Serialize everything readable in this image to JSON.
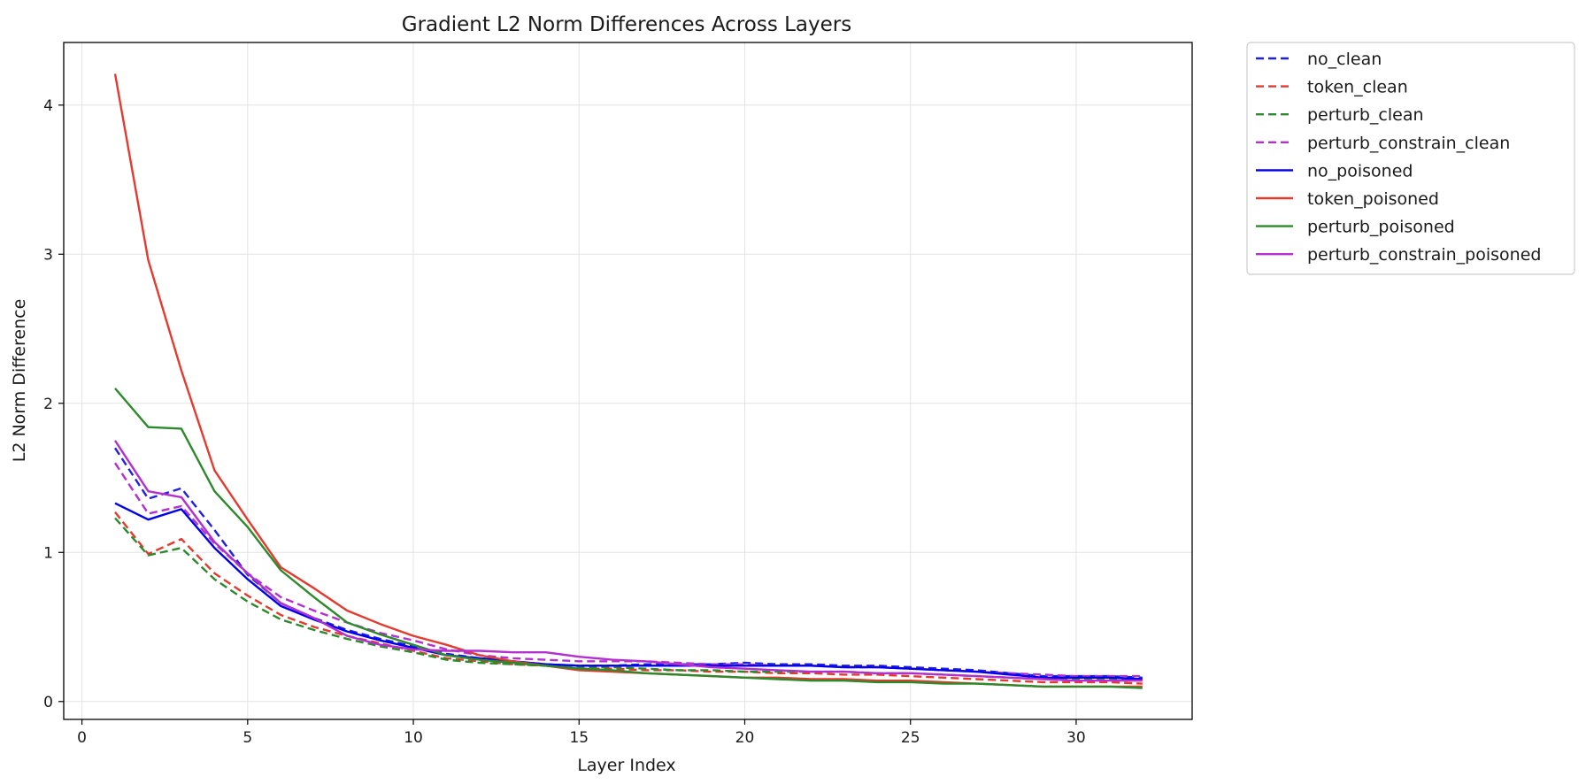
{
  "chart_data": {
    "type": "line",
    "title": "Gradient L2 Norm Differences Across Layers",
    "xlabel": "Layer Index",
    "ylabel": "L2 Norm Difference",
    "xlim": [
      -0.55,
      33.5
    ],
    "ylim": [
      -0.12,
      4.42
    ],
    "xticks": [
      0,
      5,
      10,
      15,
      20,
      25,
      30
    ],
    "yticks": [
      0,
      1,
      2,
      3,
      4
    ],
    "grid": true,
    "legend_position": "outside-top-right",
    "x": [
      1,
      2,
      3,
      4,
      5,
      6,
      7,
      8,
      9,
      10,
      11,
      12,
      13,
      14,
      15,
      16,
      17,
      18,
      19,
      20,
      21,
      22,
      23,
      24,
      25,
      26,
      27,
      28,
      29,
      30,
      31,
      32
    ],
    "series": [
      {
        "name": "no_clean",
        "color": "#1f1fe6",
        "dash": true,
        "values": [
          1.7,
          1.36,
          1.43,
          1.15,
          0.85,
          0.66,
          0.56,
          0.48,
          0.42,
          0.37,
          0.32,
          0.29,
          0.27,
          0.25,
          0.24,
          0.24,
          0.25,
          0.25,
          0.25,
          0.26,
          0.25,
          0.25,
          0.24,
          0.24,
          0.23,
          0.22,
          0.21,
          0.19,
          0.17,
          0.17,
          0.17,
          0.16
        ]
      },
      {
        "name": "token_clean",
        "color": "#e53a2f",
        "dash": true,
        "values": [
          1.27,
          0.99,
          1.09,
          0.86,
          0.71,
          0.58,
          0.5,
          0.44,
          0.39,
          0.34,
          0.29,
          0.27,
          0.25,
          0.24,
          0.22,
          0.22,
          0.21,
          0.21,
          0.2,
          0.2,
          0.19,
          0.19,
          0.18,
          0.18,
          0.17,
          0.16,
          0.15,
          0.14,
          0.13,
          0.13,
          0.13,
          0.12
        ]
      },
      {
        "name": "perturb_clean",
        "color": "#2c8a2c",
        "dash": true,
        "values": [
          1.23,
          0.98,
          1.03,
          0.82,
          0.67,
          0.55,
          0.48,
          0.42,
          0.37,
          0.33,
          0.28,
          0.26,
          0.25,
          0.24,
          0.23,
          0.23,
          0.22,
          0.21,
          0.21,
          0.2,
          0.2,
          0.2,
          0.2,
          0.19,
          0.19,
          0.18,
          0.17,
          0.16,
          0.15,
          0.15,
          0.15,
          0.15
        ]
      },
      {
        "name": "perturb_constrain_clean",
        "color": "#b42fd0",
        "dash": true,
        "values": [
          1.6,
          1.26,
          1.31,
          1.06,
          0.86,
          0.7,
          0.61,
          0.53,
          0.46,
          0.41,
          0.35,
          0.31,
          0.29,
          0.28,
          0.27,
          0.27,
          0.27,
          0.26,
          0.25,
          0.25,
          0.24,
          0.24,
          0.23,
          0.23,
          0.22,
          0.21,
          0.2,
          0.19,
          0.18,
          0.17,
          0.17,
          0.17
        ]
      },
      {
        "name": "no_poisoned",
        "color": "#0000ee",
        "dash": false,
        "values": [
          1.33,
          1.22,
          1.29,
          1.03,
          0.82,
          0.64,
          0.55,
          0.47,
          0.41,
          0.36,
          0.31,
          0.29,
          0.27,
          0.25,
          0.24,
          0.24,
          0.24,
          0.24,
          0.24,
          0.24,
          0.24,
          0.24,
          0.23,
          0.23,
          0.22,
          0.21,
          0.2,
          0.18,
          0.16,
          0.16,
          0.16,
          0.15
        ]
      },
      {
        "name": "token_poisoned",
        "color": "#e53a2f",
        "dash": false,
        "values": [
          4.21,
          2.96,
          2.22,
          1.55,
          1.22,
          0.9,
          0.76,
          0.61,
          0.52,
          0.44,
          0.38,
          0.31,
          0.27,
          0.24,
          0.21,
          0.2,
          0.19,
          0.18,
          0.17,
          0.16,
          0.16,
          0.15,
          0.15,
          0.14,
          0.14,
          0.13,
          0.12,
          0.11,
          0.1,
          0.1,
          0.1,
          0.1
        ]
      },
      {
        "name": "perturb_poisoned",
        "color": "#2c8a2c",
        "dash": false,
        "values": [
          2.1,
          1.84,
          1.83,
          1.41,
          1.17,
          0.88,
          0.7,
          0.53,
          0.45,
          0.38,
          0.31,
          0.28,
          0.26,
          0.24,
          0.22,
          0.21,
          0.19,
          0.18,
          0.17,
          0.16,
          0.15,
          0.14,
          0.14,
          0.13,
          0.13,
          0.12,
          0.12,
          0.11,
          0.1,
          0.1,
          0.1,
          0.09
        ]
      },
      {
        "name": "perturb_constrain_poisoned",
        "color": "#b42fd0",
        "dash": false,
        "values": [
          1.75,
          1.41,
          1.37,
          1.07,
          0.86,
          0.66,
          0.56,
          0.44,
          0.38,
          0.35,
          0.34,
          0.34,
          0.33,
          0.33,
          0.3,
          0.28,
          0.27,
          0.25,
          0.23,
          0.22,
          0.21,
          0.2,
          0.2,
          0.19,
          0.19,
          0.18,
          0.17,
          0.16,
          0.15,
          0.14,
          0.14,
          0.14
        ]
      }
    ]
  }
}
